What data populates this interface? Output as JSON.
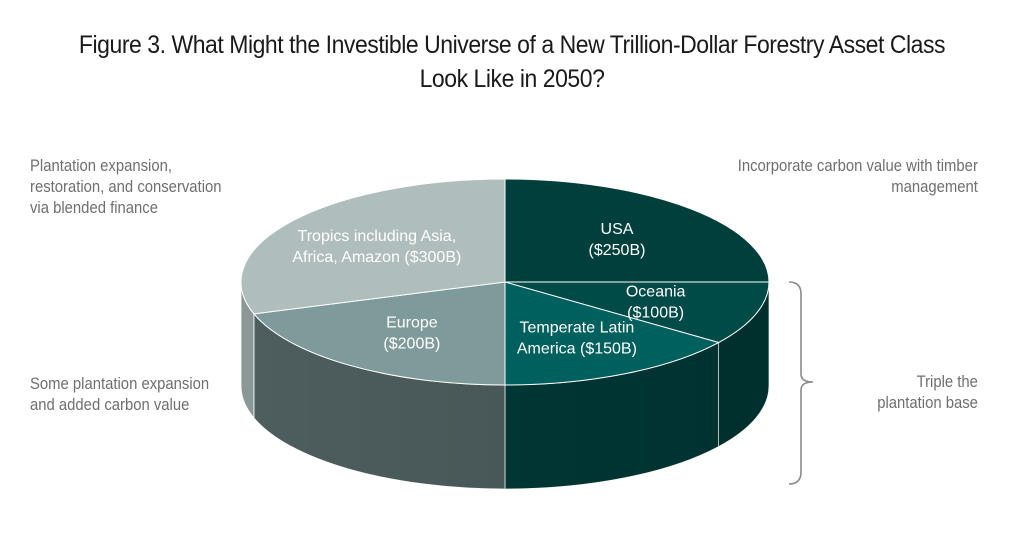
{
  "title": {
    "line1": "Figure 3. What Might the Investible Universe of a New Trillion-Dollar Forestry Asset Class",
    "line2": "Look Like in 2050?"
  },
  "annotations": {
    "top_left": [
      "Plantation expansion,",
      "restoration, and conservation",
      "via blended finance"
    ],
    "bottom_left": [
      "Some plantation expansion",
      "and added carbon value"
    ],
    "top_right": [
      "Incorporate carbon value with timber",
      "management"
    ],
    "bracket_right": [
      "Triple the",
      "plantation base"
    ]
  },
  "chart_data": {
    "type": "pie",
    "title": "Figure 3. What Might the Investible Universe of a New Trillion-Dollar Forestry Asset Class Look Like in 2050?",
    "unit": "$B",
    "slices": [
      {
        "name": "USA",
        "value": 250,
        "label": [
          "USA",
          "($250B)"
        ],
        "color": "#003f3c",
        "side": "#00302e"
      },
      {
        "name": "Oceania",
        "value": 100,
        "label": [
          "Oceania",
          "($100B)"
        ],
        "color": "#004b48",
        "side": "#003835"
      },
      {
        "name": "Temperate Latin America",
        "value": 150,
        "label": [
          "Temperate Latin",
          "America ($150B)"
        ],
        "color": "#00605e",
        "side": "#003a38"
      },
      {
        "name": "Europe",
        "value": 200,
        "label": [
          "Europe",
          "($200B)"
        ],
        "color": "#7f9a9a",
        "side": "#4e5e5e"
      },
      {
        "name": "Tropics including Asia, Africa, Amazon",
        "value": 300,
        "label": [
          "Tropics including Asia,",
          "Africa, Amazon ($300B)"
        ],
        "color": "#b0bdbd",
        "side": "#8a9898"
      }
    ]
  }
}
